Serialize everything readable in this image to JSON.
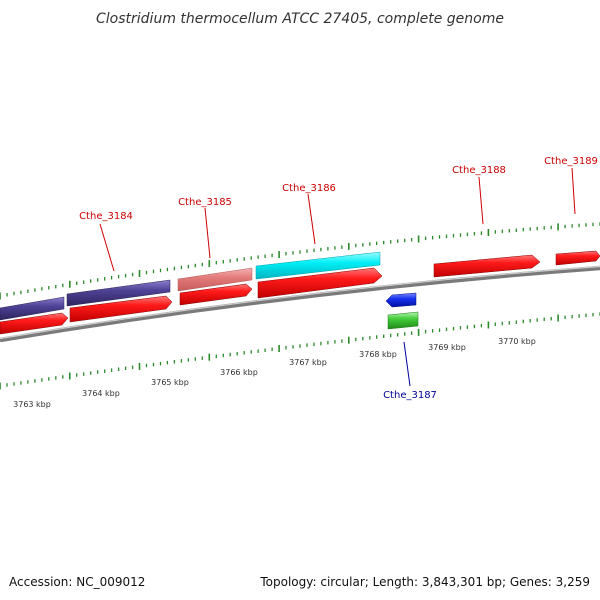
{
  "title": "Clostridium thermocellum ATCC 27405, complete genome",
  "footer": {
    "accession": "Accession: NC_009012",
    "summary": "Topology: circular; Length: 3,843,301 bp; Genes: 3,259"
  },
  "colors": {
    "label_upper": "#cc0000",
    "label_lower": "#000099",
    "backbone": "#888888",
    "tick": "#2a8a2a",
    "cds_forward": "#ee0000",
    "cds_reverse": "#ee0000",
    "gene_blue": "#0022dd",
    "gene_green": "#33bb33",
    "gene_cyan": "#00e5ee",
    "gene_pink": "#e07a7a",
    "gene_purple": "#4a3f8c"
  },
  "genes": [
    {
      "name": "Cthe_3184",
      "color": "gene_purple"
    },
    {
      "name": "Cthe_3185",
      "color": "gene_pink"
    },
    {
      "name": "Cthe_3186",
      "color": "gene_cyan"
    },
    {
      "name": "Cthe_3187",
      "color": "gene_green"
    },
    {
      "name": "Cthe_3188",
      "color": "cds_forward"
    },
    {
      "name": "Cthe_3189",
      "color": "cds_forward"
    }
  ],
  "scale_labels": [
    "3763 kbp",
    "3764 kbp",
    "3765 kbp",
    "3766 kbp",
    "3767 kbp",
    "3768 kbp",
    "3769 kbp",
    "3770 kbp"
  ]
}
